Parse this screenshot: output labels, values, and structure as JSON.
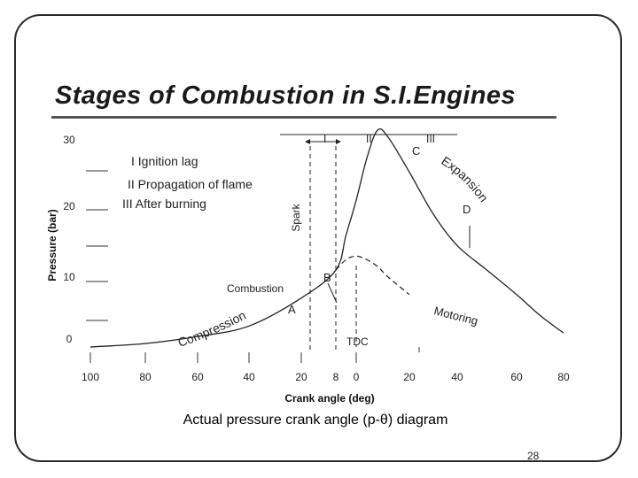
{
  "title": "Stages of Combustion in S.I.Engines",
  "caption": "Actual pressure crank angle (p-θ) diagram",
  "page_number": "28",
  "chart_data": {
    "type": "line",
    "ylabel": "Pressure (bar)",
    "xlabel": "Crank angle (deg)",
    "x_ticks": [
      "100",
      "80",
      "60",
      "40",
      "20",
      "8",
      "0",
      "20",
      "40",
      "60",
      "80"
    ],
    "y_ticks": [
      "0",
      "10",
      "20",
      "30"
    ],
    "legend_lines": [
      "I Ignition lag",
      "II Propagation of flame",
      "III After burning"
    ],
    "stage_labels": [
      "I",
      "II",
      "III"
    ],
    "marker_labels": {
      "spark": "Spark",
      "tdc": "TDC"
    },
    "point_labels": [
      "A",
      "B",
      "C",
      "D"
    ],
    "region_labels": {
      "compression": "Compression",
      "expansion": "Expansion",
      "combustion": "Combustion",
      "motoring": "Motoring"
    },
    "series": [
      {
        "line": "solid",
        "x": [
          -100,
          -80,
          -60,
          -40,
          -20,
          -8,
          -4,
          0,
          4,
          8,
          12,
          20,
          30,
          40,
          50,
          60,
          70,
          80
        ],
        "y": [
          0,
          0.5,
          1.5,
          3,
          7,
          11,
          16,
          21,
          27,
          31,
          30,
          25,
          19,
          14.5,
          11,
          7.5,
          4.5,
          2
        ]
      },
      {
        "line": "dashed",
        "x": [
          -8,
          -4,
          0,
          4,
          8,
          12,
          20
        ],
        "y": [
          11,
          12.5,
          13,
          12.5,
          11.5,
          10,
          7.5
        ]
      }
    ]
  }
}
